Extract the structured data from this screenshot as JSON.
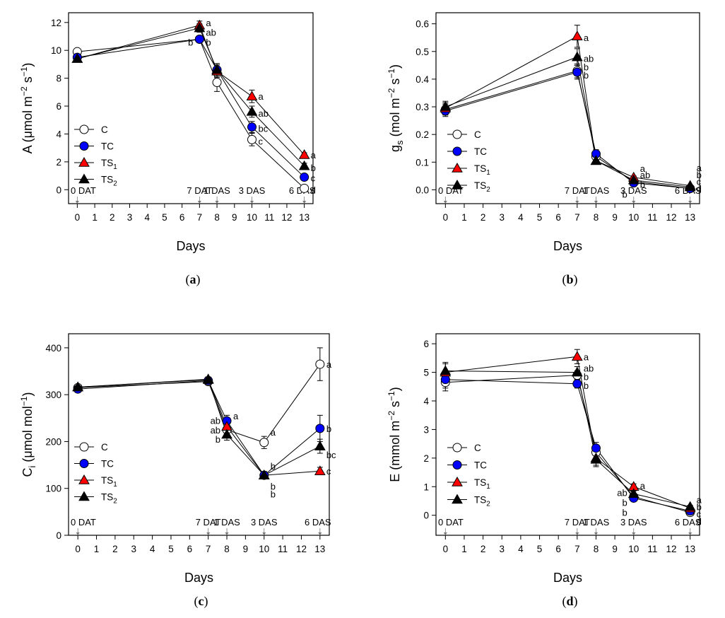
{
  "figure": {
    "panels": [
      {
        "id": "a",
        "label": "(a)",
        "label_letter": "a"
      },
      {
        "id": "b",
        "label": "(b)",
        "label_letter": "b"
      },
      {
        "id": "c",
        "label": "(c)",
        "label_letter": "c"
      },
      {
        "id": "d",
        "label": "(d)",
        "label_letter": "d"
      }
    ],
    "colors": {
      "C": "#ffffff",
      "TC": "#0000ff",
      "TS1": "#ff0000",
      "TS2": "#000000",
      "axis": "#000000"
    }
  },
  "chart_data": [
    {
      "id": "a",
      "type": "line",
      "panel_label": "(a)",
      "ylabel": "A (μmol m⁻² s⁻¹)",
      "ylabel_parts": {
        "main": "A (",
        "unit": "μmol m",
        "sup1": "−2",
        "mid": " s",
        "sup2": "−1",
        "end": ")"
      },
      "xlabel": "Days",
      "ylim": [
        -1,
        12.7
      ],
      "yticks": [
        0,
        2,
        4,
        6,
        8,
        10,
        12
      ],
      "yticklabels": [
        "0",
        "2",
        "4",
        "6",
        "8",
        "10",
        "12"
      ],
      "xlim": [
        -0.5,
        13.5
      ],
      "xticks": [
        0,
        1,
        2,
        3,
        4,
        5,
        6,
        7,
        8,
        9,
        10,
        11,
        12,
        13
      ],
      "annotations": [
        {
          "x": 0,
          "text": "0 DAT"
        },
        {
          "x": 7,
          "text": "7 DAT"
        },
        {
          "x": 8,
          "text": "1 DAS"
        },
        {
          "x": 10,
          "text": "3 DAS"
        },
        {
          "x": 13,
          "text": "6 DAS"
        }
      ],
      "x": [
        0,
        7,
        8,
        10,
        13
      ],
      "series": [
        {
          "name": "C",
          "legend": "C",
          "legend_sub": "",
          "marker": "circle",
          "values": [
            9.9,
            10.8,
            7.7,
            3.6,
            0.1
          ],
          "errors": [
            0.15,
            0.2,
            0.65,
            0.45,
            0.1
          ]
        },
        {
          "name": "TC",
          "legend": "TC",
          "legend_sub": "",
          "marker": "circle",
          "values": [
            9.5,
            10.8,
            8.6,
            4.5,
            0.9
          ],
          "errors": [
            0.15,
            0.2,
            0.45,
            0.4,
            0.15
          ]
        },
        {
          "name": "TS1",
          "legend": "TS",
          "legend_sub": "1",
          "marker": "triangle",
          "values": [
            9.4,
            11.8,
            8.5,
            6.7,
            2.5
          ],
          "errors": [
            0.15,
            0.3,
            0.45,
            0.45,
            0.15
          ]
        },
        {
          "name": "TS2",
          "legend": "TS",
          "legend_sub": "2",
          "marker": "triangle",
          "values": [
            9.4,
            11.6,
            8.6,
            5.6,
            1.7
          ],
          "errors": [
            0.15,
            0.3,
            0.45,
            0.4,
            0.2
          ]
        }
      ],
      "letters": [
        {
          "x": 7,
          "y": 12.0,
          "text": "a"
        },
        {
          "x": 7,
          "y": 11.3,
          "text": "ab"
        },
        {
          "x": 7,
          "y": 10.6,
          "text": "b"
        },
        {
          "x": 7,
          "y": 10.6,
          "text": "b",
          "side": "left"
        },
        {
          "x": 10,
          "y": 6.7,
          "text": "a"
        },
        {
          "x": 10,
          "y": 5.5,
          "text": "ab"
        },
        {
          "x": 10,
          "y": 4.4,
          "text": "bc"
        },
        {
          "x": 10,
          "y": 3.5,
          "text": "c"
        },
        {
          "x": 13,
          "y": 2.5,
          "text": "a"
        },
        {
          "x": 13,
          "y": 1.6,
          "text": "b"
        },
        {
          "x": 13,
          "y": 0.85,
          "text": "c"
        },
        {
          "x": 13,
          "y": 0.0,
          "text": "d"
        }
      ]
    },
    {
      "id": "b",
      "type": "line",
      "panel_label": "(b)",
      "ylabel": "gs (mol m⁻² s⁻¹)",
      "ylabel_parts": {
        "main": "g",
        "main_sub": "s",
        "unit": " (mol m",
        "sup1": "−2",
        "mid": " s",
        "sup2": "−1",
        "end": ")"
      },
      "xlabel": "Days",
      "ylim": [
        -0.05,
        0.64
      ],
      "yticks": [
        0.0,
        0.1,
        0.2,
        0.3,
        0.4,
        0.5,
        0.6
      ],
      "yticklabels": [
        "0.0",
        "0.1",
        "0.2",
        "0.3",
        "0.4",
        "0.5",
        "0.6"
      ],
      "xlim": [
        -0.5,
        13.5
      ],
      "xticks": [
        0,
        1,
        2,
        3,
        4,
        5,
        6,
        7,
        8,
        9,
        10,
        11,
        12,
        13
      ],
      "annotations": [
        {
          "x": 0,
          "text": "0 DAT"
        },
        {
          "x": 7,
          "text": "7 DAT"
        },
        {
          "x": 8,
          "text": "1 DAS"
        },
        {
          "x": 10,
          "text": "3 DAS"
        },
        {
          "x": 13,
          "text": "6 DAS"
        }
      ],
      "x": [
        0,
        7,
        8,
        10,
        13
      ],
      "series": [
        {
          "name": "C",
          "legend": "C",
          "legend_sub": "",
          "marker": "circle",
          "values": [
            0.29,
            0.43,
            0.12,
            0.03,
            0.005
          ],
          "errors": [
            0.02,
            0.025,
            0.015,
            0.005,
            0.003
          ]
        },
        {
          "name": "TC",
          "legend": "TC",
          "legend_sub": "",
          "marker": "circle",
          "values": [
            0.285,
            0.425,
            0.13,
            0.025,
            0.005
          ],
          "errors": [
            0.02,
            0.025,
            0.015,
            0.005,
            0.003
          ]
        },
        {
          "name": "TS1",
          "legend": "TS",
          "legend_sub": "1",
          "marker": "triangle",
          "values": [
            0.295,
            0.555,
            0.105,
            0.045,
            0.015
          ],
          "errors": [
            0.02,
            0.04,
            0.01,
            0.005,
            0.003
          ]
        },
        {
          "name": "TS2",
          "legend": "TS",
          "legend_sub": "2",
          "marker": "triangle",
          "values": [
            0.3,
            0.48,
            0.105,
            0.035,
            0.01
          ],
          "errors": [
            0.02,
            0.03,
            0.01,
            0.005,
            0.003
          ]
        }
      ],
      "letters": [
        {
          "x": 7,
          "y": 0.55,
          "text": "a"
        },
        {
          "x": 7,
          "y": 0.475,
          "text": "ab"
        },
        {
          "x": 7,
          "y": 0.445,
          "text": "b"
        },
        {
          "x": 7,
          "y": 0.415,
          "text": "b"
        },
        {
          "x": 10,
          "y": 0.078,
          "text": "a"
        },
        {
          "x": 10,
          "y": 0.055,
          "text": "ab"
        },
        {
          "x": 10,
          "y": 0.02,
          "text": "b"
        },
        {
          "x": 10,
          "y": -0.015,
          "text": "b",
          "side": "left"
        },
        {
          "x": 13,
          "y": 0.08,
          "text": "a"
        },
        {
          "x": 13,
          "y": 0.055,
          "text": "b"
        },
        {
          "x": 13,
          "y": 0.03,
          "text": "c"
        },
        {
          "x": 13,
          "y": 0.005,
          "text": "d"
        }
      ]
    },
    {
      "id": "c",
      "type": "line",
      "panel_label": "(c)",
      "ylabel": "Ci (μmol mol⁻¹)",
      "ylabel_parts": {
        "main": "C",
        "main_sub": "i",
        "unit": " (μmol mol",
        "sup1": "−1",
        "mid": "",
        "sup2": "",
        "end": ")"
      },
      "xlabel": "Days",
      "ylim": [
        0,
        430
      ],
      "yticks": [
        0,
        100,
        200,
        300,
        400
      ],
      "yticklabels": [
        "0",
        "100",
        "200",
        "300",
        "400"
      ],
      "xlim": [
        -0.5,
        13.5
      ],
      "xticks": [
        0,
        1,
        2,
        3,
        4,
        5,
        6,
        7,
        8,
        9,
        10,
        11,
        12,
        13
      ],
      "annotations": [
        {
          "x": 0,
          "text": "0 DAT"
        },
        {
          "x": 7,
          "text": "7 DAT"
        },
        {
          "x": 8,
          "text": "1 DAS"
        },
        {
          "x": 10,
          "text": "3 DAS"
        },
        {
          "x": 13,
          "text": "6 DAS"
        }
      ],
      "x": [
        0,
        7,
        8,
        10,
        13
      ],
      "series": [
        {
          "name": "C",
          "legend": "C",
          "legend_sub": "",
          "marker": "circle",
          "values": [
            315,
            328,
            225,
            198,
            365
          ],
          "errors": [
            5,
            5,
            12,
            13,
            35
          ]
        },
        {
          "name": "TC",
          "legend": "TC",
          "legend_sub": "",
          "marker": "circle",
          "values": [
            312,
            330,
            244,
            128,
            228
          ],
          "errors": [
            5,
            5,
            12,
            8,
            28
          ]
        },
        {
          "name": "TS1",
          "legend": "TS",
          "legend_sub": "1",
          "marker": "triangle",
          "values": [
            316,
            332,
            232,
            128,
            137
          ],
          "errors": [
            5,
            5,
            12,
            6,
            8
          ]
        },
        {
          "name": "TS2",
          "legend": "TS",
          "legend_sub": "2",
          "marker": "triangle",
          "values": [
            316,
            333,
            215,
            128,
            190
          ],
          "errors": [
            5,
            5,
            12,
            6,
            15
          ]
        }
      ],
      "letters": [
        {
          "x": 8,
          "y": 255,
          "text": "a"
        },
        {
          "x": 8,
          "y": 245,
          "text": "ab",
          "side": "left"
        },
        {
          "x": 8,
          "y": 225,
          "text": "ab",
          "side": "left"
        },
        {
          "x": 8,
          "y": 205,
          "text": "b",
          "side": "left"
        },
        {
          "x": 10,
          "y": 220,
          "text": "a"
        },
        {
          "x": 10,
          "y": 148,
          "text": "b"
        },
        {
          "x": 10,
          "y": 105,
          "text": "b"
        },
        {
          "x": 10,
          "y": 88,
          "text": "b"
        },
        {
          "x": 13,
          "y": 365,
          "text": "a"
        },
        {
          "x": 13,
          "y": 228,
          "text": "b"
        },
        {
          "x": 13,
          "y": 172,
          "text": "bc"
        },
        {
          "x": 13,
          "y": 137,
          "text": "c"
        }
      ]
    },
    {
      "id": "d",
      "type": "line",
      "panel_label": "(d)",
      "ylabel": "E (mmol m⁻² s⁻¹)",
      "ylabel_parts": {
        "main": "E (",
        "unit": "mmol m",
        "sup1": "−2",
        "mid": " s",
        "sup2": "−1",
        "end": ")"
      },
      "xlabel": "Days",
      "ylim": [
        -0.7,
        6.35
      ],
      "yticks": [
        0,
        1,
        2,
        3,
        4,
        5,
        6
      ],
      "yticklabels": [
        "0",
        "1",
        "2",
        "3",
        "4",
        "5",
        "6"
      ],
      "xlim": [
        -0.5,
        13.5
      ],
      "xticks": [
        0,
        1,
        2,
        3,
        4,
        5,
        6,
        7,
        8,
        9,
        10,
        11,
        12,
        13
      ],
      "annotations": [
        {
          "x": 0,
          "text": "0 DAT"
        },
        {
          "x": 7,
          "text": "7 DAT"
        },
        {
          "x": 8,
          "text": "1 DAS"
        },
        {
          "x": 10,
          "text": "3 DAS"
        },
        {
          "x": 13,
          "text": "6 DAS"
        }
      ],
      "x": [
        0,
        7,
        8,
        10,
        13
      ],
      "series": [
        {
          "name": "C",
          "legend": "C",
          "legend_sub": "",
          "marker": "circle",
          "values": [
            4.65,
            4.9,
            2.2,
            0.65,
            0.1
          ],
          "errors": [
            0.3,
            0.15,
            0.2,
            0.1,
            0.05
          ]
        },
        {
          "name": "TC",
          "legend": "TC",
          "legend_sub": "",
          "marker": "circle",
          "values": [
            4.75,
            4.6,
            2.35,
            0.6,
            0.15
          ],
          "errors": [
            0.3,
            0.15,
            0.2,
            0.1,
            0.05
          ]
        },
        {
          "name": "TS1",
          "legend": "TS",
          "legend_sub": "1",
          "marker": "triangle",
          "values": [
            5.0,
            5.55,
            2.0,
            1.0,
            0.25
          ],
          "errors": [
            0.3,
            0.25,
            0.25,
            0.1,
            0.05
          ]
        },
        {
          "name": "TS2",
          "legend": "TS",
          "legend_sub": "2",
          "marker": "triangle",
          "values": [
            5.05,
            5.0,
            1.95,
            0.75,
            0.3
          ],
          "errors": [
            0.3,
            0.2,
            0.25,
            0.1,
            0.05
          ]
        }
      ],
      "letters": [
        {
          "x": 7,
          "y": 5.55,
          "text": "a"
        },
        {
          "x": 7,
          "y": 5.15,
          "text": "ab"
        },
        {
          "x": 7,
          "y": 4.85,
          "text": "b"
        },
        {
          "x": 7,
          "y": 4.55,
          "text": "b"
        },
        {
          "x": 10,
          "y": 1.05,
          "text": "a"
        },
        {
          "x": 10,
          "y": 0.8,
          "text": "ab",
          "side": "left"
        },
        {
          "x": 10,
          "y": 0.45,
          "text": "b",
          "side": "left"
        },
        {
          "x": 10,
          "y": 0.1,
          "text": "b",
          "side": "left"
        },
        {
          "x": 13,
          "y": 0.55,
          "text": "a"
        },
        {
          "x": 13,
          "y": 0.3,
          "text": "b"
        },
        {
          "x": 13,
          "y": 0.05,
          "text": "c"
        },
        {
          "x": 13,
          "y": -0.2,
          "text": "d"
        }
      ]
    }
  ]
}
